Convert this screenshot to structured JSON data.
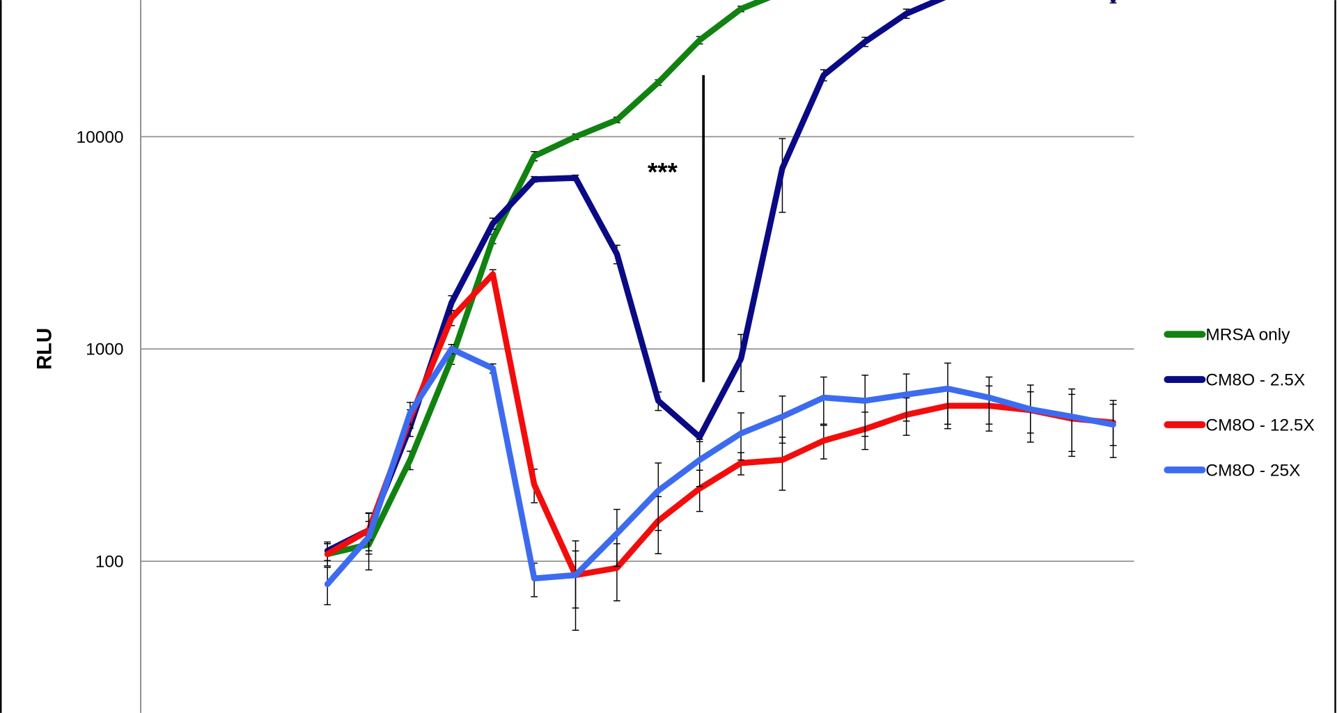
{
  "chart_data": {
    "type": "line",
    "title": "",
    "xlabel": "",
    "ylabel": "RLU",
    "y_scale": "log",
    "ylim": [
      19.3,
      44000
    ],
    "y_ticks": [
      "100",
      "1000",
      "10000"
    ],
    "y_tick_values": [
      100,
      1000,
      10000
    ],
    "grid": "horizontal",
    "legend_position": "right",
    "annotation": {
      "text": "***",
      "between_point": 10
    },
    "series": [
      {
        "name": "MRSA only",
        "color": "#118211",
        "values": [
          108,
          120,
          300,
          900,
          3300,
          8100,
          10000,
          12000,
          18000,
          28500,
          40000,
          48000,
          null,
          null,
          null,
          null,
          null,
          null,
          null,
          null
        ],
        "err_frac": [
          0.12,
          0.1,
          0.1,
          0.06,
          0.05,
          0.05,
          0.03,
          0.03,
          0.03,
          0.04,
          0.03,
          0.03,
          null,
          null,
          null,
          null,
          null,
          null,
          null,
          null
        ]
      },
      {
        "name": "CM8O - 2.5X",
        "color": "#0a0a85",
        "values": [
          112,
          140,
          430,
          1650,
          3900,
          6300,
          6400,
          2800,
          570,
          385,
          900,
          7100,
          19500,
          28000,
          38000,
          46000,
          null,
          null,
          null,
          44000
        ],
        "err_frac": [
          0.1,
          0.1,
          0.1,
          0.08,
          0.06,
          0.03,
          0.03,
          0.1,
          0.1,
          0.05,
          0.3,
          0.38,
          0.06,
          0.05,
          0.05,
          0.03,
          null,
          null,
          null,
          0.03
        ]
      },
      {
        "name": "CM8O - 12.5X",
        "color": "#f20d0d",
        "values": [
          108,
          140,
          470,
          1400,
          2250,
          230,
          86,
          93,
          155,
          220,
          290,
          300,
          370,
          420,
          490,
          540,
          540,
          515,
          470,
          450
        ],
        "err_frac": [
          0.12,
          0.2,
          0.1,
          0.08,
          0.05,
          0.18,
          0.3,
          0.3,
          0.3,
          0.22,
          0.12,
          0.28,
          0.18,
          0.2,
          0.2,
          0.22,
          0.24,
          0.22,
          0.3,
          0.22
        ]
      },
      {
        "name": "CM8O - 25X",
        "color": "#3d6bf0",
        "values": [
          78,
          130,
          500,
          1000,
          810,
          83,
          86,
          135,
          215,
          300,
          400,
          480,
          590,
          570,
          610,
          650,
          590,
          520,
          480,
          440
        ],
        "err_frac": [
          0.2,
          0.3,
          0.12,
          0.05,
          0.05,
          0.18,
          0.45,
          0.3,
          0.35,
          0.25,
          0.25,
          0.25,
          0.25,
          0.32,
          0.25,
          0.32,
          0.25,
          0.3,
          0.35,
          0.3
        ]
      }
    ]
  }
}
